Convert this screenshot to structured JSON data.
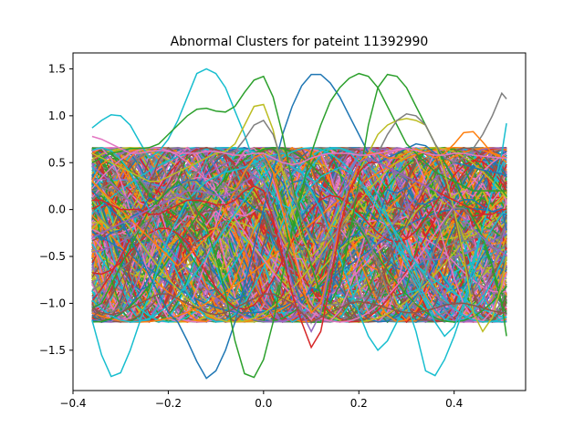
{
  "chart_data": {
    "type": "line",
    "title": "Abnormal Clusters for pateint 11392990",
    "xlabel": "",
    "ylabel": "",
    "xlim": [
      -0.4,
      0.55
    ],
    "ylim": [
      -1.93,
      1.67
    ],
    "xticks": [
      -0.4,
      -0.2,
      0.0,
      0.2,
      0.4
    ],
    "xtick_labels": [
      "−0.4",
      "−0.2",
      "0.0",
      "0.2",
      "0.4"
    ],
    "yticks": [
      -1.5,
      -1.0,
      -0.5,
      0.0,
      0.5,
      1.0,
      1.5
    ],
    "ytick_labels": [
      "−1.5",
      "−1.0",
      "−0.5",
      "0.0",
      "0.5",
      "1.0",
      "1.5"
    ],
    "grid": false,
    "legend": "none",
    "colors": [
      "#1f77b4",
      "#ff7f0e",
      "#2ca02c",
      "#d62728",
      "#9467bd",
      "#8c564b",
      "#e377c2",
      "#7f7f7f",
      "#bcbd22",
      "#17becf"
    ],
    "x": [
      -0.36,
      -0.34,
      -0.32,
      -0.3,
      -0.28,
      -0.26,
      -0.24,
      -0.22,
      -0.2,
      -0.18,
      -0.16,
      -0.14,
      -0.12,
      -0.1,
      -0.08,
      -0.06,
      -0.04,
      -0.02,
      0.0,
      0.02,
      0.04,
      0.06,
      0.08,
      0.1,
      0.12,
      0.14,
      0.16,
      0.18,
      0.2,
      0.22,
      0.24,
      0.26,
      0.28,
      0.3,
      0.32,
      0.34,
      0.36,
      0.38,
      0.4,
      0.42,
      0.44,
      0.46,
      0.48,
      0.5,
      0.51
    ],
    "series": [
      {
        "color": "#17becf",
        "values": [
          0.87,
          0.95,
          1.01,
          1.0,
          0.9,
          0.72,
          0.55,
          0.62,
          0.75,
          0.95,
          1.2,
          1.45,
          1.5,
          1.45,
          1.3,
          1.05,
          0.8,
          0.5,
          0.3,
          0.15,
          0.05,
          0.0,
          0.1,
          0.25,
          0.35,
          0.4,
          0.45,
          0.4,
          0.3,
          0.15,
          0.0,
          -0.2,
          -0.4,
          -0.6,
          -0.8,
          -1.0,
          -1.2,
          -1.35,
          -1.25,
          -1.0,
          -0.6,
          -0.2,
          0.2,
          0.6,
          0.92
        ]
      },
      {
        "color": "#17becf",
        "values": [
          -1.18,
          -1.55,
          -1.78,
          -1.74,
          -1.5,
          -1.2,
          -0.9,
          -0.6,
          -0.3,
          -0.1,
          0.1,
          0.2,
          0.3,
          0.35,
          0.4,
          0.42,
          0.45,
          0.5,
          0.55,
          0.58,
          0.6,
          0.55,
          0.4,
          0.2,
          0.0,
          -0.25,
          -0.5,
          -0.8,
          -1.1,
          -1.35,
          -1.5,
          -1.4,
          -1.2,
          -1.0,
          -1.3,
          -1.72,
          -1.77,
          -1.6,
          -1.35,
          -1.05,
          -0.7,
          -0.4,
          -0.2,
          -0.05,
          0.0
        ]
      },
      {
        "color": "#1f77b4",
        "values": [
          0.2,
          0.1,
          0.0,
          -0.1,
          -0.3,
          -0.5,
          -0.7,
          -0.9,
          -1.1,
          -1.2,
          -1.4,
          -1.62,
          -1.8,
          -1.72,
          -1.5,
          -1.2,
          -0.8,
          -0.4,
          0.0,
          0.4,
          0.8,
          1.1,
          1.32,
          1.44,
          1.44,
          1.35,
          1.2,
          1.0,
          0.8,
          0.6,
          0.5,
          0.55,
          0.6,
          0.65,
          0.7,
          0.68,
          0.6,
          0.55,
          0.5,
          0.48,
          0.45,
          0.42,
          0.4,
          0.38,
          0.35
        ]
      },
      {
        "color": "#2ca02c",
        "values": [
          0.5,
          0.55,
          0.6,
          0.62,
          0.65,
          0.65,
          0.66,
          0.7,
          0.8,
          0.9,
          1.0,
          1.07,
          1.08,
          1.05,
          1.04,
          1.1,
          1.25,
          1.38,
          1.42,
          1.2,
          0.8,
          0.3,
          -0.2,
          -0.6,
          -0.9,
          -1.0,
          -0.8,
          -0.3,
          0.3,
          0.9,
          1.3,
          1.44,
          1.42,
          1.3,
          1.1,
          0.9,
          0.7,
          0.5,
          0.3,
          0.1,
          -0.1,
          -0.3,
          -0.6,
          -1.0,
          -1.35
        ]
      },
      {
        "color": "#2ca02c",
        "values": [
          -1.05,
          -1.0,
          -0.8,
          -0.6,
          -0.4,
          -0.2,
          0.0,
          0.1,
          0.2,
          0.3,
          0.2,
          0.0,
          -0.2,
          -0.5,
          -0.9,
          -1.4,
          -1.75,
          -1.79,
          -1.6,
          -1.2,
          -0.7,
          -0.2,
          0.2,
          0.6,
          0.9,
          1.15,
          1.3,
          1.4,
          1.45,
          1.42,
          1.3,
          1.1,
          0.9,
          0.7,
          0.6,
          0.5,
          0.4,
          0.35,
          0.3,
          0.25,
          0.2,
          0.2,
          0.2,
          0.2,
          0.2
        ]
      },
      {
        "color": "#bcbd22",
        "values": [
          0.6,
          0.55,
          0.5,
          0.45,
          0.4,
          0.35,
          0.3,
          0.3,
          0.35,
          0.4,
          0.45,
          0.5,
          0.55,
          0.6,
          0.62,
          0.7,
          0.9,
          1.1,
          1.12,
          0.85,
          0.4,
          0.0,
          -0.3,
          -0.5,
          -0.4,
          -0.2,
          0.0,
          0.2,
          0.4,
          0.6,
          0.8,
          0.9,
          0.95,
          0.97,
          0.95,
          0.9,
          0.7,
          0.4,
          0.0,
          -0.5,
          -1.1,
          -1.3,
          -1.15,
          -0.8,
          -0.5
        ]
      },
      {
        "color": "#7f7f7f",
        "values": [
          0.0,
          -0.1,
          -0.2,
          -0.3,
          -0.3,
          -0.2,
          -0.1,
          0.0,
          0.1,
          0.2,
          0.3,
          0.4,
          0.5,
          0.55,
          0.6,
          0.62,
          0.75,
          0.9,
          0.95,
          0.8,
          0.5,
          0.2,
          -0.1,
          -0.3,
          -0.35,
          -0.3,
          -0.2,
          0.0,
          0.2,
          0.4,
          0.6,
          0.8,
          0.95,
          1.02,
          1.0,
          0.9,
          0.7,
          0.55,
          0.5,
          0.55,
          0.65,
          0.8,
          1.0,
          1.24,
          1.18
        ]
      },
      {
        "color": "#ff7f0e",
        "values": [
          0.3,
          0.2,
          0.1,
          0.0,
          -0.1,
          -0.2,
          -0.3,
          -0.4,
          -0.5,
          -0.6,
          -0.5,
          -0.4,
          -0.3,
          -0.2,
          0.0,
          0.2,
          0.4,
          0.55,
          0.6,
          0.4,
          0.0,
          -0.4,
          -0.8,
          -1.1,
          -1.0,
          -0.6,
          -0.2,
          0.2,
          0.5,
          0.6,
          0.6,
          0.55,
          0.55,
          0.6,
          0.65,
          0.6,
          0.55,
          0.6,
          0.7,
          0.82,
          0.83,
          0.72,
          0.6,
          0.55,
          0.5
        ]
      },
      {
        "color": "#d62728",
        "values": [
          0.1,
          0.1,
          0.05,
          0.0,
          0.0,
          0.0,
          -0.05,
          -0.05,
          0.0,
          0.05,
          0.1,
          0.1,
          0.08,
          0.05,
          0.05,
          0.1,
          0.2,
          0.25,
          0.2,
          -0.1,
          -0.5,
          -0.9,
          -1.2,
          -1.47,
          -1.3,
          -0.8,
          -0.2,
          0.2,
          0.4,
          0.5,
          0.5,
          0.45,
          0.4,
          0.35,
          0.3,
          0.25,
          0.2,
          0.15,
          0.1,
          0.05,
          0.0,
          -0.05,
          -0.05,
          0.0,
          0.0
        ]
      },
      {
        "color": "#9467bd",
        "values": [
          -0.3,
          -0.25,
          -0.2,
          -0.15,
          -0.1,
          -0.05,
          0.0,
          0.05,
          0.1,
          0.15,
          0.2,
          0.2,
          0.18,
          0.15,
          0.15,
          0.2,
          0.3,
          0.35,
          0.3,
          0.0,
          -0.4,
          -0.8,
          -1.1,
          -1.3,
          -1.1,
          -0.6,
          -0.1,
          0.3,
          0.5,
          0.55,
          0.5,
          0.45,
          0.4,
          0.35,
          0.3,
          0.25,
          0.2,
          0.1,
          0.0,
          -0.1,
          -0.2,
          -0.3,
          -0.4,
          -0.45,
          -0.5
        ]
      },
      {
        "color": "#e377c2",
        "values": [
          0.78,
          0.75,
          0.7,
          0.65,
          0.6,
          0.6,
          0.62,
          0.63,
          0.62,
          0.6,
          0.6,
          0.6,
          0.62,
          0.62,
          0.6,
          0.58,
          0.58,
          0.6,
          0.6,
          0.55,
          0.5,
          0.48,
          0.5,
          0.55,
          0.58,
          0.6,
          0.6,
          0.6,
          0.58,
          0.58,
          0.6,
          0.62,
          0.64,
          0.65,
          0.63,
          0.6,
          0.58,
          0.58,
          0.6,
          0.6,
          0.58,
          0.57,
          0.56,
          0.55,
          0.55
        ]
      },
      {
        "color": "#8c564b",
        "values": [
          -1.05,
          -1.1,
          -1.12,
          -1.1,
          -1.05,
          -1.0,
          -0.95,
          -0.9,
          -0.9,
          -0.95,
          -1.0,
          -1.05,
          -1.1,
          -1.12,
          -1.1,
          -1.05,
          -1.0,
          -0.95,
          -0.9,
          -0.9,
          -0.95,
          -1.0,
          -1.1,
          -1.2,
          -1.15,
          -1.1,
          -1.05,
          -1.0,
          -0.98,
          -1.0,
          -1.02,
          -1.05,
          -1.08,
          -1.1,
          -1.1,
          -1.08,
          -1.05,
          -1.02,
          -1.0,
          -1.0,
          -1.02,
          -1.05,
          -1.08,
          -1.1,
          -1.1
        ]
      }
    ],
    "background_band": {
      "ymin": -1.2,
      "ymax": 0.66,
      "series_count": 400
    }
  }
}
